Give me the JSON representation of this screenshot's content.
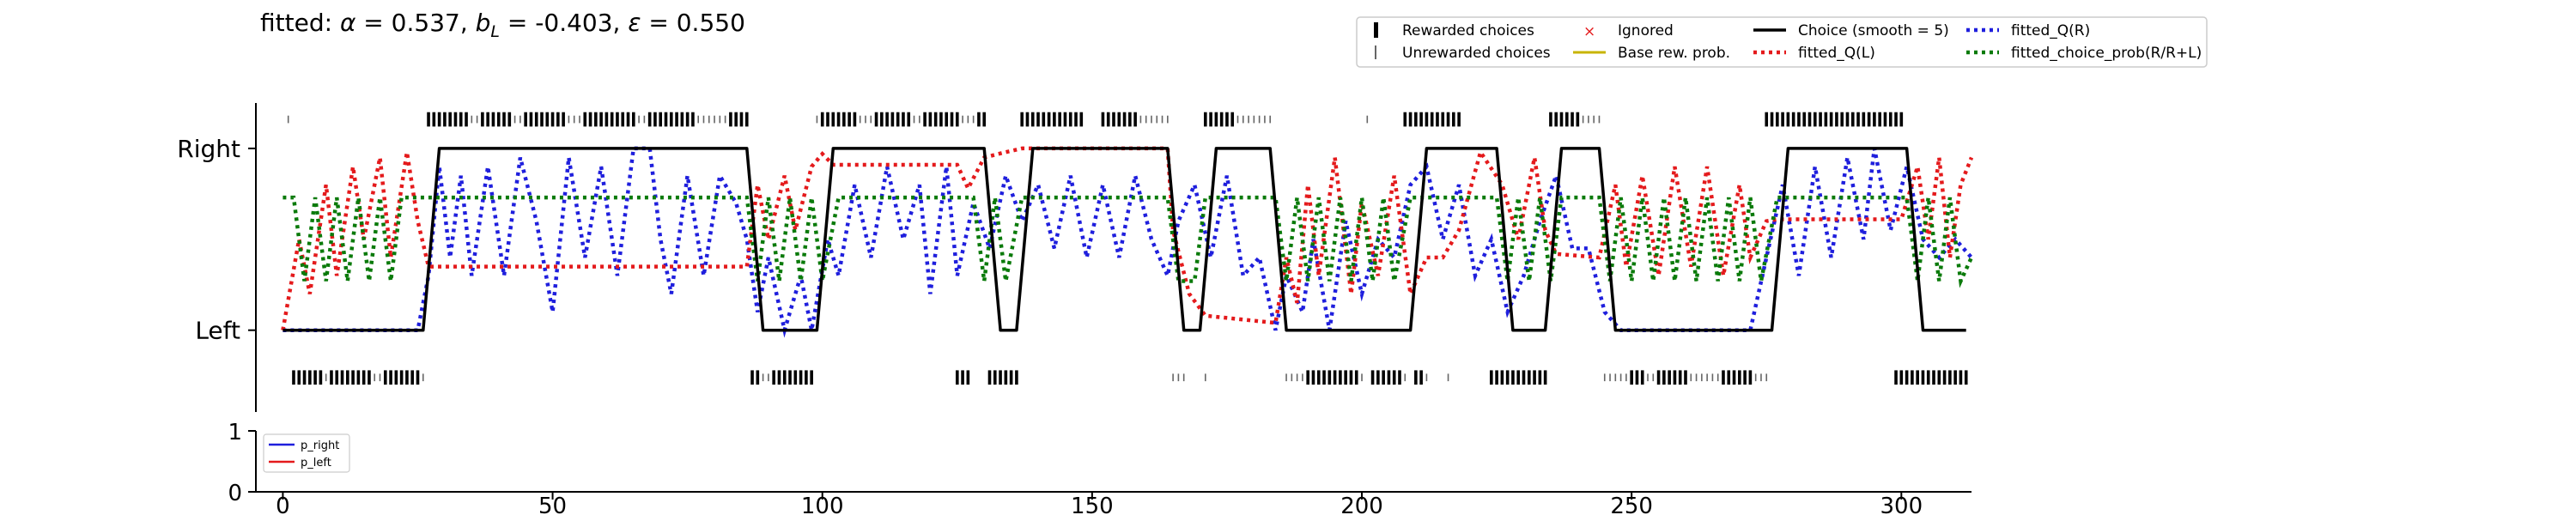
{
  "chart_data": [
    {
      "type": "line",
      "title": "fitted: α = 0.537, b_L = -0.403, ε = 0.550",
      "title_parts": {
        "prefix": "fitted: ",
        "alpha": "α",
        "alpha_val": " = 0.537, ",
        "b": "b",
        "b_sub": "L",
        "b_val": " = -0.403, ",
        "eps": "ε",
        "eps_val": " = 0.550"
      },
      "xlim": [
        -5,
        313
      ],
      "ylim": [
        -0.45,
        1.25
      ],
      "y_ticks": [
        {
          "value": 0,
          "label": "Left"
        },
        {
          "value": 1,
          "label": "Right"
        }
      ],
      "x_ticks": [
        0,
        50,
        100,
        150,
        200,
        250,
        300
      ],
      "legend_position": "top-right",
      "legend": {
        "rewarded": "Rewarded choices",
        "unrewarded": "Unrewarded choices",
        "ignored": "Ignored",
        "base": "Base rew. prob.",
        "choice": "Choice (smooth = 5)",
        "q_l": "fitted_Q(L)",
        "q_r": "fitted_Q(R)",
        "choice_prob": "fitted_choice_prob(R/R+L)"
      },
      "colors": {
        "choice": "#000000",
        "q_l": "#e41a1c",
        "q_r": "#1f1fdd",
        "choice_prob": "#0a7a0a",
        "base": "#c8b400",
        "ignored": "#e41a1c",
        "unrewarded": "#666666"
      },
      "n_trials": 313,
      "choice_segments": [
        {
          "side": "left",
          "start": 2,
          "end": 26
        },
        {
          "side": "right",
          "start": 27,
          "end": 86
        },
        {
          "side": "left",
          "start": 87,
          "end": 99
        },
        {
          "side": "right",
          "start": 100,
          "end": 130
        },
        {
          "side": "left",
          "start": 131,
          "end": 136
        },
        {
          "side": "right",
          "start": 137,
          "end": 164
        },
        {
          "side": "left",
          "start": 165,
          "end": 170
        },
        {
          "side": "right",
          "start": 171,
          "end": 183
        },
        {
          "side": "left",
          "start": 184,
          "end": 209
        },
        {
          "side": "right",
          "start": 210,
          "end": 225
        },
        {
          "side": "left",
          "start": 226,
          "end": 234
        },
        {
          "side": "right",
          "start": 235,
          "end": 244
        },
        {
          "side": "left",
          "start": 245,
          "end": 276
        },
        {
          "side": "right",
          "start": 277,
          "end": 301
        },
        {
          "side": "left",
          "start": 302,
          "end": 312
        }
      ],
      "rewarded_right_blocks": [
        [
          27,
          34
        ],
        [
          37,
          42
        ],
        [
          45,
          52
        ],
        [
          56,
          65
        ],
        [
          68,
          76
        ],
        [
          83,
          86
        ],
        [
          100,
          106
        ],
        [
          110,
          116
        ],
        [
          119,
          125
        ],
        [
          129,
          130
        ],
        [
          137,
          148
        ],
        [
          152,
          158
        ],
        [
          171,
          176
        ],
        [
          208,
          218
        ],
        [
          235,
          240
        ],
        [
          275,
          300
        ]
      ],
      "rewarded_left_blocks": [
        [
          2,
          7
        ],
        [
          9,
          16
        ],
        [
          19,
          25
        ],
        [
          87,
          88
        ],
        [
          91,
          98
        ],
        [
          125,
          127
        ],
        [
          131,
          136
        ],
        [
          190,
          199
        ],
        [
          202,
          207
        ],
        [
          210,
          211
        ],
        [
          224,
          234
        ],
        [
          250,
          252
        ],
        [
          255,
          260
        ],
        [
          267,
          272
        ],
        [
          299,
          312
        ]
      ],
      "unrewarded_right_ticks": [
        1,
        35,
        36,
        43,
        44,
        53,
        54,
        55,
        66,
        67,
        77,
        78,
        79,
        80,
        81,
        82,
        99,
        107,
        108,
        109,
        117,
        118,
        126,
        127,
        128,
        159,
        160,
        161,
        162,
        163,
        164,
        177,
        178,
        179,
        180,
        181,
        182,
        183,
        201,
        241,
        242,
        243,
        244
      ],
      "unrewarded_left_ticks": [
        8,
        17,
        18,
        26,
        89,
        90,
        165,
        166,
        167,
        171,
        186,
        187,
        188,
        189,
        200,
        208,
        212,
        216,
        245,
        246,
        247,
        248,
        249,
        253,
        254,
        261,
        262,
        263,
        264,
        265,
        266,
        273,
        274,
        275
      ],
      "q_l_knots": [
        [
          0,
          0
        ],
        [
          3,
          0.5
        ],
        [
          5,
          0.2
        ],
        [
          8,
          0.8
        ],
        [
          10,
          0.3
        ],
        [
          13,
          0.9
        ],
        [
          15,
          0.5
        ],
        [
          18,
          0.95
        ],
        [
          20,
          0.4
        ],
        [
          23,
          0.98
        ],
        [
          25,
          0.6
        ],
        [
          27,
          0.35
        ],
        [
          86,
          0.35
        ],
        [
          88,
          0.8
        ],
        [
          90,
          0.5
        ],
        [
          93,
          0.85
        ],
        [
          95,
          0.55
        ],
        [
          98,
          0.9
        ],
        [
          100,
          0.97
        ],
        [
          102,
          0.91
        ],
        [
          125,
          0.91
        ],
        [
          127,
          0.78
        ],
        [
          130,
          0.95
        ],
        [
          134,
          0.98
        ],
        [
          137,
          1.0
        ],
        [
          164,
          1.0
        ],
        [
          165,
          0.55
        ],
        [
          168,
          0.2
        ],
        [
          171,
          0.08
        ],
        [
          184,
          0.04
        ],
        [
          186,
          0.4
        ],
        [
          188,
          0.15
        ],
        [
          190,
          0.8
        ],
        [
          192,
          0.3
        ],
        [
          195,
          0.95
        ],
        [
          198,
          0.2
        ],
        [
          200,
          0.7
        ],
        [
          203,
          0.3
        ],
        [
          206,
          0.85
        ],
        [
          209,
          0.2
        ],
        [
          212,
          0.4
        ],
        [
          215,
          0.4
        ],
        [
          218,
          0.55
        ],
        [
          222,
          0.98
        ],
        [
          226,
          0.8
        ],
        [
          229,
          0.5
        ],
        [
          232,
          0.95
        ],
        [
          234,
          0.55
        ],
        [
          236,
          0.42
        ],
        [
          244,
          0.4
        ],
        [
          247,
          0.8
        ],
        [
          249,
          0.35
        ],
        [
          252,
          0.85
        ],
        [
          255,
          0.3
        ],
        [
          258,
          0.9
        ],
        [
          261,
          0.35
        ],
        [
          264,
          0.9
        ],
        [
          267,
          0.3
        ],
        [
          270,
          0.8
        ],
        [
          272,
          0.4
        ],
        [
          275,
          0.6
        ],
        [
          277,
          0.61
        ],
        [
          300,
          0.61
        ],
        [
          303,
          0.9
        ],
        [
          305,
          0.5
        ],
        [
          307,
          0.95
        ],
        [
          309,
          0.4
        ],
        [
          311,
          0.8
        ],
        [
          313,
          0.95
        ]
      ],
      "q_r_knots": [
        [
          0,
          0
        ],
        [
          25,
          0.0
        ],
        [
          27,
          0.3
        ],
        [
          29,
          0.9
        ],
        [
          31,
          0.4
        ],
        [
          33,
          0.85
        ],
        [
          35,
          0.3
        ],
        [
          38,
          0.9
        ],
        [
          41,
          0.3
        ],
        [
          44,
          0.95
        ],
        [
          47,
          0.6
        ],
        [
          50,
          0.1
        ],
        [
          53,
          0.95
        ],
        [
          56,
          0.4
        ],
        [
          59,
          0.9
        ],
        [
          62,
          0.3
        ],
        [
          65,
          1.0
        ],
        [
          68,
          1.0
        ],
        [
          70,
          0.5
        ],
        [
          72,
          0.2
        ],
        [
          75,
          0.85
        ],
        [
          78,
          0.3
        ],
        [
          81,
          0.85
        ],
        [
          84,
          0.7
        ],
        [
          86,
          0.5
        ],
        [
          88,
          0.1
        ],
        [
          90,
          0.4
        ],
        [
          93,
          0.0
        ],
        [
          96,
          0.3
        ],
        [
          98,
          0.0
        ],
        [
          101,
          0.5
        ],
        [
          103,
          0.3
        ],
        [
          106,
          0.8
        ],
        [
          109,
          0.4
        ],
        [
          112,
          0.9
        ],
        [
          115,
          0.5
        ],
        [
          118,
          0.8
        ],
        [
          120,
          0.2
        ],
        [
          123,
          0.9
        ],
        [
          125,
          0.3
        ],
        [
          128,
          0.7
        ],
        [
          131,
          0.45
        ],
        [
          134,
          0.85
        ],
        [
          137,
          0.6
        ],
        [
          140,
          0.8
        ],
        [
          143,
          0.45
        ],
        [
          146,
          0.85
        ],
        [
          149,
          0.4
        ],
        [
          152,
          0.8
        ],
        [
          155,
          0.4
        ],
        [
          158,
          0.85
        ],
        [
          161,
          0.5
        ],
        [
          164,
          0.3
        ],
        [
          166,
          0.6
        ],
        [
          169,
          0.8
        ],
        [
          172,
          0.4
        ],
        [
          175,
          0.85
        ],
        [
          178,
          0.3
        ],
        [
          181,
          0.4
        ],
        [
          184,
          0.0
        ],
        [
          186,
          0.3
        ],
        [
          189,
          0.1
        ],
        [
          191,
          0.5
        ],
        [
          194,
          0.0
        ],
        [
          197,
          0.6
        ],
        [
          200,
          0.2
        ],
        [
          203,
          0.5
        ],
        [
          206,
          0.4
        ],
        [
          209,
          0.8
        ],
        [
          212,
          0.9
        ],
        [
          215,
          0.5
        ],
        [
          218,
          0.8
        ],
        [
          221,
          0.3
        ],
        [
          224,
          0.5
        ],
        [
          227,
          0.1
        ],
        [
          230,
          0.3
        ],
        [
          233,
          0.6
        ],
        [
          236,
          0.85
        ],
        [
          239,
          0.45
        ],
        [
          242,
          0.45
        ],
        [
          245,
          0.1
        ],
        [
          248,
          0.0
        ],
        [
          272,
          0.0
        ],
        [
          275,
          0.4
        ],
        [
          278,
          0.8
        ],
        [
          281,
          0.3
        ],
        [
          284,
          0.9
        ],
        [
          287,
          0.4
        ],
        [
          290,
          0.95
        ],
        [
          293,
          0.5
        ],
        [
          295,
          1.0
        ],
        [
          298,
          0.55
        ],
        [
          301,
          0.9
        ],
        [
          304,
          0.5
        ],
        [
          307,
          0.4
        ],
        [
          310,
          0.5
        ],
        [
          313,
          0.4
        ]
      ],
      "choice_prob_knots": [
        [
          0,
          0.73
        ],
        [
          2,
          0.73
        ],
        [
          4,
          0.27
        ],
        [
          6,
          0.73
        ],
        [
          8,
          0.27
        ],
        [
          10,
          0.73
        ],
        [
          12,
          0.27
        ],
        [
          14,
          0.73
        ],
        [
          16,
          0.27
        ],
        [
          18,
          0.73
        ],
        [
          20,
          0.27
        ],
        [
          22,
          0.73
        ],
        [
          25,
          0.73
        ],
        [
          86,
          0.73
        ],
        [
          88,
          0.27
        ],
        [
          90,
          0.73
        ],
        [
          92,
          0.27
        ],
        [
          94,
          0.73
        ],
        [
          96,
          0.27
        ],
        [
          98,
          0.73
        ],
        [
          100,
          0.27
        ],
        [
          103,
          0.73
        ],
        [
          128,
          0.73
        ],
        [
          130,
          0.27
        ],
        [
          132,
          0.73
        ],
        [
          134,
          0.27
        ],
        [
          137,
          0.73
        ],
        [
          164,
          0.73
        ],
        [
          166,
          0.27
        ],
        [
          169,
          0.27
        ],
        [
          171,
          0.73
        ],
        [
          184,
          0.73
        ],
        [
          186,
          0.27
        ],
        [
          188,
          0.73
        ],
        [
          190,
          0.27
        ],
        [
          192,
          0.73
        ],
        [
          194,
          0.27
        ],
        [
          196,
          0.73
        ],
        [
          198,
          0.27
        ],
        [
          200,
          0.73
        ],
        [
          202,
          0.27
        ],
        [
          204,
          0.73
        ],
        [
          206,
          0.27
        ],
        [
          209,
          0.73
        ],
        [
          225,
          0.73
        ],
        [
          227,
          0.27
        ],
        [
          229,
          0.73
        ],
        [
          231,
          0.27
        ],
        [
          233,
          0.73
        ],
        [
          235,
          0.27
        ],
        [
          237,
          0.73
        ],
        [
          244,
          0.73
        ],
        [
          246,
          0.27
        ],
        [
          248,
          0.73
        ],
        [
          250,
          0.27
        ],
        [
          252,
          0.73
        ],
        [
          254,
          0.27
        ],
        [
          256,
          0.73
        ],
        [
          258,
          0.27
        ],
        [
          260,
          0.73
        ],
        [
          262,
          0.27
        ],
        [
          264,
          0.73
        ],
        [
          266,
          0.27
        ],
        [
          268,
          0.73
        ],
        [
          270,
          0.27
        ],
        [
          272,
          0.73
        ],
        [
          274,
          0.27
        ],
        [
          277,
          0.73
        ],
        [
          301,
          0.73
        ],
        [
          303,
          0.27
        ],
        [
          305,
          0.73
        ],
        [
          307,
          0.27
        ],
        [
          309,
          0.73
        ],
        [
          311,
          0.27
        ],
        [
          313,
          0.4
        ]
      ]
    },
    {
      "type": "line",
      "xlim": [
        -5,
        313
      ],
      "ylim": [
        0,
        1
      ],
      "y_ticks": [
        {
          "value": 0,
          "label": "0"
        },
        {
          "value": 1,
          "label": "1"
        }
      ],
      "x_ticks": [
        0,
        50,
        100,
        150,
        200,
        250,
        300
      ],
      "legend_position": "top-left",
      "series": [
        {
          "name": "p_right",
          "color": "#1f1fdd"
        },
        {
          "name": "p_left",
          "color": "#e41a1c"
        }
      ]
    }
  ]
}
